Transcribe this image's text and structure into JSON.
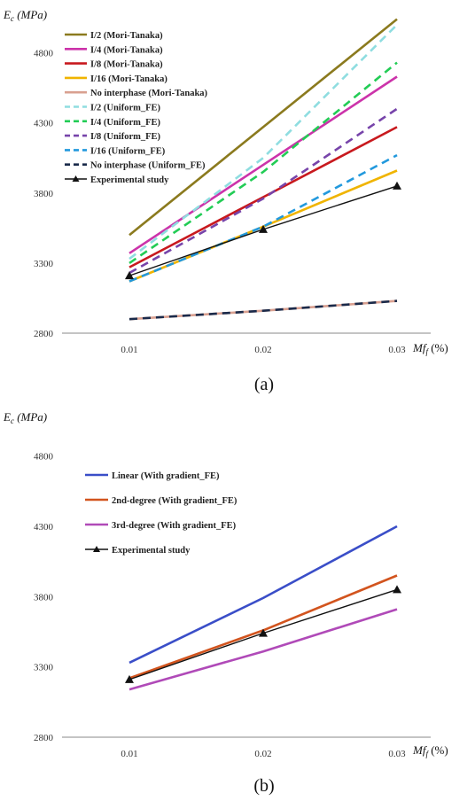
{
  "chart_data": [
    {
      "type": "line",
      "ylabel": "E_c (MPa)",
      "xlabel": "Mf_f (%)",
      "caption": "(a)",
      "categories": [
        "0.01",
        "0.02",
        "0.03"
      ],
      "ylim": [
        2800,
        5050
      ],
      "yticks": [
        "2800",
        "3300",
        "3800",
        "4300",
        "4800"
      ],
      "grid": false,
      "legend_position": "top-left",
      "series": [
        {
          "name": "I/2 (Mori-Tanaka)",
          "values": [
            3500,
            4270,
            5040
          ],
          "color": "#8b7a1e",
          "dash": false,
          "marker": false
        },
        {
          "name": "I/4 (Mori-Tanaka)",
          "values": [
            3370,
            4000,
            4630
          ],
          "color": "#cc33aa",
          "dash": false,
          "marker": false
        },
        {
          "name": "I/8 (Mori-Tanaka)",
          "values": [
            3270,
            3770,
            4270
          ],
          "color": "#c8191e",
          "dash": false,
          "marker": false
        },
        {
          "name": "I/16 (Mori-Tanaka)",
          "values": [
            3170,
            3560,
            3960
          ],
          "color": "#f0b400",
          "dash": false,
          "marker": false
        },
        {
          "name": "No interphase (Mori-Tanaka)",
          "values": [
            2900,
            2960,
            3030
          ],
          "color": "#d9a090",
          "dash": false,
          "marker": false
        },
        {
          "name": "I/2 (Uniform_FE)",
          "values": [
            3330,
            4050,
            5000
          ],
          "color": "#8fdde0",
          "dash": true,
          "marker": false
        },
        {
          "name": "I/4 (Uniform_FE)",
          "values": [
            3300,
            3950,
            4730
          ],
          "color": "#22cc55",
          "dash": true,
          "marker": false
        },
        {
          "name": "I/8 (Uniform_FE)",
          "values": [
            3230,
            3760,
            4400
          ],
          "color": "#7744aa",
          "dash": true,
          "marker": false
        },
        {
          "name": "I/16 (Uniform_FE)",
          "values": [
            3170,
            3560,
            4070
          ],
          "color": "#2299dd",
          "dash": true,
          "marker": false
        },
        {
          "name": "No interphase (Uniform_FE)",
          "values": [
            2900,
            2960,
            3030
          ],
          "color": "#1a2a4a",
          "dash": true,
          "marker": false
        },
        {
          "name": "Experimental study",
          "values": [
            3210,
            3540,
            3850
          ],
          "color": "#111111",
          "dash": false,
          "marker": true
        }
      ]
    },
    {
      "type": "line",
      "ylabel": "E_c (MPa)",
      "xlabel": "Mf_f (%)",
      "caption": "(b)",
      "categories": [
        "0.01",
        "0.02",
        "0.03"
      ],
      "ylim": [
        2800,
        5050
      ],
      "yticks": [
        "2800",
        "3300",
        "3800",
        "4300",
        "4800"
      ],
      "grid": false,
      "legend_position": "top-left",
      "series": [
        {
          "name": "Linear (With gradient_FE)",
          "values": [
            3330,
            3790,
            4300
          ],
          "color": "#3a4ec8",
          "dash": false,
          "marker": false
        },
        {
          "name": "2nd-degree (With gradient_FE)",
          "values": [
            3220,
            3560,
            3950
          ],
          "color": "#d2541e",
          "dash": false,
          "marker": false
        },
        {
          "name": "3rd-degree (With gradient_FE)",
          "values": [
            3140,
            3410,
            3710
          ],
          "color": "#b04ab8",
          "dash": false,
          "marker": false
        },
        {
          "name": "Experimental study",
          "values": [
            3210,
            3540,
            3850
          ],
          "color": "#111111",
          "dash": false,
          "marker": true
        }
      ]
    }
  ]
}
